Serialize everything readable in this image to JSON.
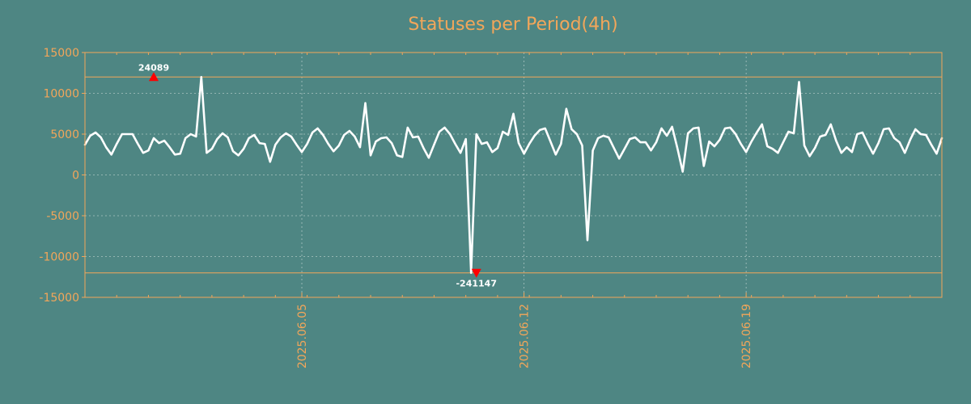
{
  "colors": {
    "background": "#4e8683",
    "accent": "#f2a65a",
    "line": "#ffffff",
    "marker": "#ff0000",
    "grid": "#c8d8d6"
  },
  "chart_data": {
    "type": "line",
    "title": "Statuses per Period(4h)",
    "xlabel": "",
    "ylabel": "",
    "ylim": [
      -15000,
      15000
    ],
    "yticks": [
      15000,
      10000,
      5000,
      0,
      -5000,
      -10000,
      -15000
    ],
    "ytick_labels": [
      "15000",
      "10000",
      "5000",
      "0",
      "-5000",
      "-10000",
      "-15000"
    ],
    "xlim": [
      "2025-05-29T04:00",
      "2025-06-25T04:00"
    ],
    "xticks": [
      "2025-06-05",
      "2025-06-12",
      "2025-06-19"
    ],
    "xtick_labels": [
      "2025.06.05",
      "2025.06.12",
      "2025.06.19"
    ],
    "grid": true,
    "clip_lines": [
      12000,
      -12000
    ],
    "annotations": [
      {
        "label": "24089",
        "x": "2025-05-31T08:00",
        "y": 12000,
        "marker": "up-triangle"
      },
      {
        "label": "-241147",
        "x": "2025-06-10T12:00",
        "y": -12000,
        "marker": "down-triangle"
      }
    ],
    "series": [
      {
        "x_start": "2025-05-29T04:00",
        "interval_hours": 4,
        "values": [
          3700,
          4800,
          5200,
          4600,
          3400,
          2500,
          3800,
          5000,
          5000,
          5000,
          3800,
          2700,
          3000,
          4500,
          3900,
          4200,
          3400,
          2500,
          2600,
          4500,
          5000,
          4700,
          12000,
          2700,
          3200,
          4400,
          5100,
          4600,
          2900,
          2400,
          3200,
          4500,
          4900,
          3900,
          3800,
          1600,
          3700,
          4600,
          5100,
          4700,
          3700,
          2800,
          3800,
          5200,
          5700,
          4900,
          3800,
          2900,
          3600,
          4900,
          5400,
          4700,
          3400,
          8800,
          2400,
          4100,
          4500,
          4600,
          3900,
          2400,
          2200,
          5800,
          4600,
          4700,
          3300,
          2100,
          3700,
          5300,
          5800,
          5000,
          3800,
          2700,
          4400,
          -12000,
          5000,
          3800,
          4000,
          2800,
          3300,
          5300,
          4900,
          7500,
          3900,
          2600,
          3800,
          4800,
          5500,
          5700,
          4100,
          2500,
          3800,
          8100,
          5600,
          5000,
          3600,
          -8000,
          3000,
          4500,
          4800,
          4600,
          3300,
          2000,
          3200,
          4400,
          4600,
          4000,
          4000,
          3000,
          4000,
          5700,
          4800,
          5900,
          3300,
          400,
          5100,
          5700,
          5800,
          1100,
          4100,
          3500,
          4300,
          5700,
          5800,
          5000,
          3800,
          2800,
          4100,
          5200,
          6200,
          3500,
          3200,
          2700,
          4000,
          5300,
          5100,
          11400,
          3600,
          2300,
          3300,
          4700,
          4900,
          6200,
          4200,
          2700,
          3400,
          2800,
          5000,
          5200,
          3800,
          2600,
          3900,
          5600,
          5700,
          4500,
          4000,
          2700,
          4300,
          5600,
          5000,
          4900,
          3700,
          2600,
          4500
        ]
      }
    ]
  }
}
